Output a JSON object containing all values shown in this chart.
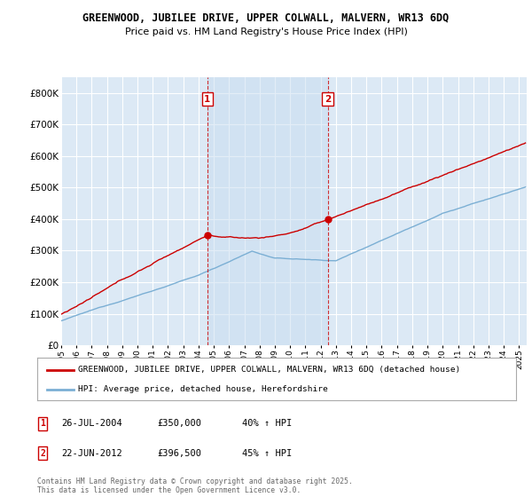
{
  "title_line1": "GREENWOOD, JUBILEE DRIVE, UPPER COLWALL, MALVERN, WR13 6DQ",
  "title_line2": "Price paid vs. HM Land Registry's House Price Index (HPI)",
  "ylim": [
    0,
    850000
  ],
  "xlim_start": 1995.0,
  "xlim_end": 2025.5,
  "background_color": "#dce9f5",
  "grid_color": "#ffffff",
  "hpi_color": "#7bafd4",
  "price_color": "#cc0000",
  "vline_color": "#cc0000",
  "transaction1_x": 2004.57,
  "transaction2_x": 2012.47,
  "legend_house_label": "GREENWOOD, JUBILEE DRIVE, UPPER COLWALL, MALVERN, WR13 6DQ (detached house)",
  "legend_hpi_label": "HPI: Average price, detached house, Herefordshire",
  "annotation1_date": "26-JUL-2004",
  "annotation1_price": "£350,000",
  "annotation1_hpi": "40% ↑ HPI",
  "annotation2_date": "22-JUN-2012",
  "annotation2_price": "£396,500",
  "annotation2_hpi": "45% ↑ HPI",
  "copyright_text": "Contains HM Land Registry data © Crown copyright and database right 2025.\nThis data is licensed under the Open Government Licence v3.0.",
  "yticks": [
    0,
    100000,
    200000,
    300000,
    400000,
    500000,
    600000,
    700000,
    800000
  ],
  "ytick_labels": [
    "£0",
    "£100K",
    "£200K",
    "£300K",
    "£400K",
    "£500K",
    "£600K",
    "£700K",
    "£800K"
  ]
}
